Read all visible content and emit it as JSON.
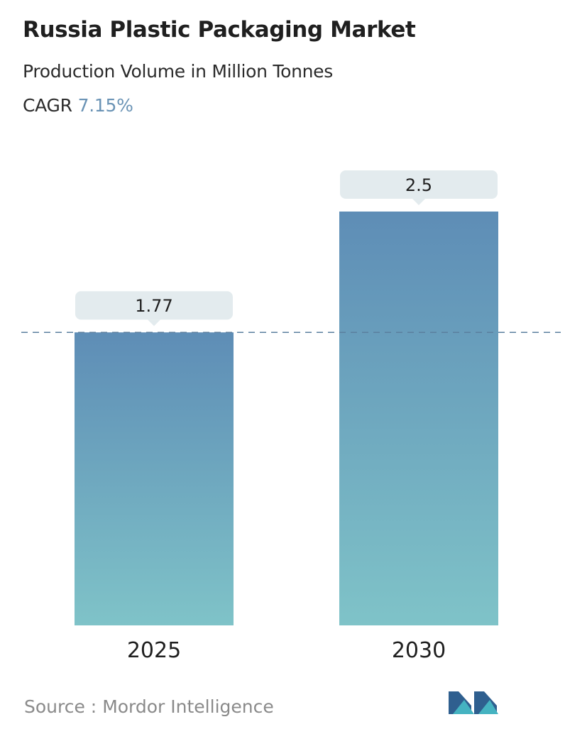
{
  "header": {
    "title": "Russia Plastic Packaging Market",
    "subtitle": "Production Volume in Million Tonnes",
    "cagr_label": "CAGR",
    "cagr_value": "7.15%"
  },
  "chart_data": {
    "type": "bar",
    "title": "Russia Plastic Packaging Market",
    "subtitle": "Production Volume in Million Tonnes",
    "categories": [
      "2025",
      "2030"
    ],
    "values": [
      1.77,
      2.5
    ],
    "value_labels": [
      "1.77",
      "2.5"
    ],
    "grid": false,
    "reference_line_at": 1.77,
    "colors": {
      "bar_top": "#5e8db6",
      "bar_bottom": "#7fc3c8",
      "label_box": "#e3ebee",
      "reference_line": "#5b7f9e",
      "accent": "#6a93b5"
    }
  },
  "footer": {
    "source_label": "Source :",
    "source_name": "Mordor Intelligence",
    "logo_icon": "mordor-intelligence-logo-icon"
  }
}
